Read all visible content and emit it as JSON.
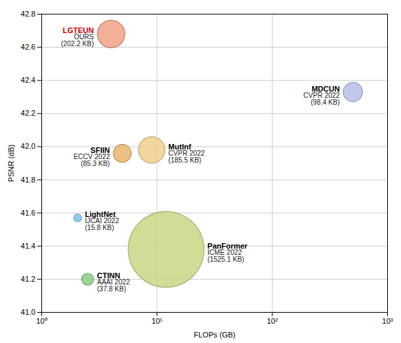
{
  "chart_data": {
    "type": "scatter",
    "xlabel": "FLOPs (GB)",
    "ylabel": "PSNR (dB)",
    "log": "x",
    "grid": true,
    "xlim": [
      1,
      1000
    ],
    "xticks": [
      {
        "value": 1,
        "label": "10⁰"
      },
      {
        "value": 10,
        "label": "10¹"
      },
      {
        "value": 100,
        "label": "10²"
      },
      {
        "value": 1000,
        "label": "10³"
      }
    ],
    "ylim": [
      41.0,
      42.8
    ],
    "yticks": [
      {
        "value": 41.0,
        "label": "41.0"
      },
      41.2,
      41.4,
      41.6,
      41.8,
      {
        "value": 42.0,
        "label": "42.0"
      },
      42.2,
      42.4,
      42.6,
      42.8
    ],
    "labels": [
      "LGTEUN",
      "MDCUN",
      "SFIIN",
      "MutInf",
      "LightNet",
      "CTINN",
      "PanFormer"
    ],
    "venues": [
      "OURS",
      "CVPR 2022",
      "ECCV 2022",
      "CVPR 2022",
      "IJCAI 2022",
      "AAAI 2022",
      "ICME 2022"
    ],
    "x": [
      4.0,
      500.0,
      5.0,
      9.0,
      2.05,
      2.5,
      12.0
    ],
    "values": [
      42.68,
      42.33,
      41.96,
      41.98,
      41.57,
      41.2,
      41.38
    ],
    "sizes": [
      202.2,
      98.4,
      85.3,
      185.5,
      15.8,
      37.8,
      1525.1
    ],
    "size_labels": [
      "(202.2 KB)",
      "(98.4 KB)",
      "(85.3 KB)",
      "(185.5 KB)",
      "(15.8 KB)",
      "(37.8 KB)",
      "(1525.1 KB)"
    ],
    "colors": [
      "#F2A48A",
      "#B8C0E8",
      "#E8B870",
      "#F0D090",
      "#80C8E8",
      "#90CC88",
      "#C8D888"
    ],
    "label_colors": [
      "#CC0000",
      "#000000",
      "#000000",
      "#000000",
      "#000000",
      "#000000",
      "#000000"
    ]
  }
}
